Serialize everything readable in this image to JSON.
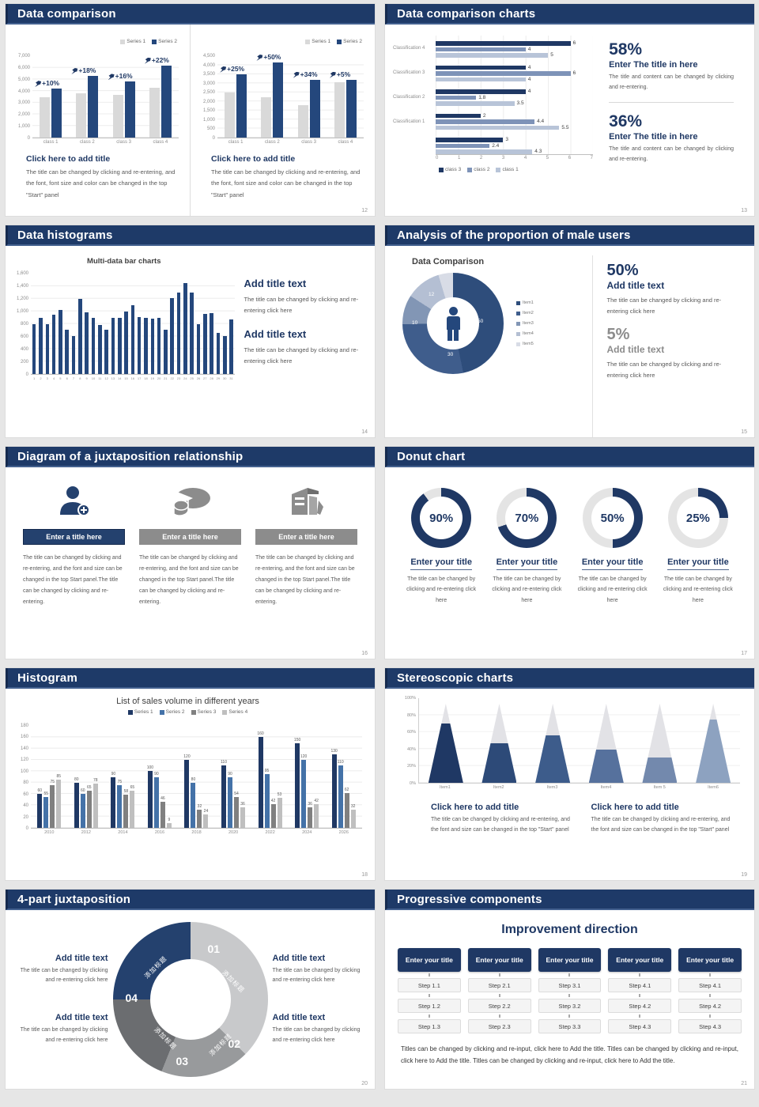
{
  "page": {
    "bg": "#e6e6e6",
    "accent": "#1f3864"
  },
  "slides": {
    "s12": {
      "title": "Data comparison",
      "page_num": "12",
      "legend": [
        {
          "label": "Series 1",
          "color": "#d9d9d9"
        },
        {
          "label": "Series 2",
          "color": "#24477c"
        }
      ],
      "charts": [
        {
          "type": "bar",
          "ymax": 7000,
          "yticks": [
            "7,000",
            "6,000",
            "5,000",
            "4,000",
            "3,000",
            "2,000",
            "1,000",
            "0"
          ],
          "categories": [
            "class 1",
            "class 2",
            "class 3",
            "class 4"
          ],
          "series": [
            {
              "name": "Series 1",
              "color": "#d9d9d9",
              "values": [
                3500,
                3800,
                3700,
                4300
              ]
            },
            {
              "name": "Series 2",
              "color": "#24477c",
              "values": [
                4200,
                5300,
                4800,
                6200
              ]
            }
          ],
          "growth_labels": [
            "+10%",
            "+18%",
            "+16%",
            "+22%"
          ]
        },
        {
          "type": "bar",
          "ymax": 4500,
          "yticks": [
            "4,500",
            "4,000",
            "3,500",
            "3,000",
            "2,500",
            "2,000",
            "1,500",
            "1,000",
            "500",
            "0"
          ],
          "categories": [
            "class 1",
            "class 2",
            "class 3",
            "class 4"
          ],
          "series": [
            {
              "name": "Series 1",
              "color": "#d9d9d9",
              "values": [
                2500,
                2250,
                1800,
                3050
              ]
            },
            {
              "name": "Series 2",
              "color": "#24477c",
              "values": [
                3500,
                4150,
                3200,
                3200
              ]
            }
          ],
          "growth_labels": [
            "+25%",
            "+50%",
            "+34%",
            "+5%"
          ]
        }
      ],
      "blocks": [
        {
          "heading": "Click here to add title",
          "body": "The title can be changed by clicking and re-entering, and the font, font size and color can be changed in the top \"Start\" panel"
        },
        {
          "heading": "Click here to add title",
          "body": "The title can be changed by clicking and re-entering, and the font, font size and color can be changed in the top \"Start\" panel"
        }
      ]
    },
    "s13": {
      "title": "Data comparison charts",
      "page_num": "13",
      "chart": {
        "type": "bar-horizontal",
        "xmax": 7,
        "xticks": [
          "0",
          "1",
          "2",
          "3",
          "4",
          "5",
          "6",
          "7"
        ],
        "colors": [
          "#1f3864",
          "#7e93b8",
          "#b8c4d8"
        ],
        "groups": [
          {
            "label": "Classification 4",
            "values": [
              6,
              4,
              5
            ]
          },
          {
            "label": "Classification 3",
            "values": [
              4,
              6,
              4
            ]
          },
          {
            "label": "Classification 2",
            "values": [
              4,
              1.8,
              3.5
            ]
          },
          {
            "label": "Classification 1",
            "values": [
              2,
              4.4,
              5.5
            ]
          },
          {
            "label": "",
            "values": [
              3,
              2.4,
              4.3
            ]
          }
        ]
      },
      "legend": [
        {
          "label": "class 3",
          "color": "#1f3864"
        },
        {
          "label": "class 2",
          "color": "#7e93b8"
        },
        {
          "label": "class 1",
          "color": "#b8c4d8"
        }
      ],
      "stats": [
        {
          "pct": "58%",
          "heading": "Enter The title in here",
          "body": "The title and content can be changed by clicking and re-entering."
        },
        {
          "pct": "36%",
          "heading": "Enter The title in here",
          "body": "The title and content can be changed by clicking and re-entering."
        }
      ]
    },
    "s14": {
      "title": "Data histograms",
      "page_num": "14",
      "chart": {
        "type": "bar",
        "title": "Multi-data bar charts",
        "ymax": 1600,
        "yticks": [
          "1,600",
          "1,400",
          "1,200",
          "1,000",
          "800",
          "600",
          "400",
          "200",
          "0"
        ],
        "categories": [
          "1",
          "2",
          "3",
          "4",
          "5",
          "6",
          "7",
          "8",
          "9",
          "10",
          "11",
          "12",
          "13",
          "14",
          "15",
          "16",
          "17",
          "18",
          "19",
          "20",
          "21",
          "22",
          "23",
          "24",
          "25",
          "26",
          "27",
          "28",
          "29",
          "30",
          "31"
        ],
        "series": [
          {
            "name": "data",
            "color": "#24477c",
            "values": [
              800,
              900,
              800,
              950,
              1020,
              700,
              600,
              1200,
              980,
              900,
              780,
              700,
              890,
              900,
              1000,
              1100,
              910,
              900,
              880,
              900,
              700,
              1210,
              1300,
              1450,
              1300,
              800,
              960,
              970,
              660,
              600,
              870
            ]
          }
        ]
      },
      "blocks": [
        {
          "heading": "Add title text",
          "body": "The title can be changed by clicking and re-entering click here"
        },
        {
          "heading": "Add title text",
          "body": "The title can be changed by clicking and re-entering click here"
        }
      ]
    },
    "s15": {
      "title": "Analysis of the proportion of male users",
      "page_num": "15",
      "chart": {
        "type": "pie",
        "title": "Data Comparison",
        "values": [
          50,
          30,
          10,
          12,
          5
        ],
        "colors": [
          "#2e4d7b",
          "#3f5d8c",
          "#8296b5",
          "#b4bfd3",
          "#d8dce6"
        ],
        "slice_labels": [
          "50",
          "30",
          "10",
          "12"
        ],
        "legend": [
          "Item1",
          "Item2",
          "Item3",
          "Item4",
          "Item5"
        ]
      },
      "icon": "male-figure-icon",
      "stats": [
        {
          "pct": "50%",
          "heading": "Add title text",
          "body": "The title can be changed by clicking and re-entering click here",
          "muted": false
        },
        {
          "pct": "5%",
          "heading": "Add title text",
          "body": "The title can be changed by clicking and re-entering click here",
          "muted": true
        }
      ]
    },
    "s16": {
      "title": "Diagram of a juxtaposition relationship",
      "page_num": "16",
      "columns": [
        {
          "icon": "person-add-icon",
          "bar": "Enter a title here",
          "body": "The title can be changed by clicking and re-entering, and the font and size can be changed in the top Start panel.The title can be changed by clicking and re-entering."
        },
        {
          "icon": "pie-chart-icon",
          "bar": "Enter a title here",
          "body": "The title can be changed by clicking and re-entering, and the font and size can be changed in the top Start panel.The title can be changed by clicking and re-entering."
        },
        {
          "icon": "building-icon",
          "bar": "Enter a title here",
          "body": "The title can be changed by clicking and re-entering, and the font and size can be changed in the top Start panel.The title can be changed by clicking and re-entering."
        }
      ]
    },
    "s17": {
      "title": "Donut chart",
      "page_num": "17",
      "rings": [
        {
          "pct": 90,
          "pct_label": "90%",
          "heading": "Enter your title",
          "body": "The title can be changed by clicking and re-entering click here"
        },
        {
          "pct": 70,
          "pct_label": "70%",
          "heading": "Enter your title",
          "body": "The title can be changed by clicking and re-entering click here"
        },
        {
          "pct": 50,
          "pct_label": "50%",
          "heading": "Enter your title",
          "body": "The title can be changed by clicking and re-entering click here"
        },
        {
          "pct": 25,
          "pct_label": "25%",
          "heading": "Enter your title",
          "body": "The title can be changed by clicking and re-entering click here"
        }
      ],
      "ring_color": "#1f3864",
      "ring_track": "#e4e4e4"
    },
    "s18": {
      "title": "Histogram",
      "page_num": "18",
      "chart": {
        "type": "bar",
        "title": "List of sales volume in different years",
        "ymax": 180,
        "yticks": [
          "180",
          "160",
          "140",
          "120",
          "100",
          "80",
          "60",
          "40",
          "20",
          "0"
        ],
        "categories": [
          "2010",
          "2012",
          "2014",
          "2016",
          "2018",
          "2020",
          "2022",
          "2024",
          "2026"
        ],
        "series": [
          {
            "name": "Series 1",
            "color": "#1f3864",
            "values": [
              60,
              80,
              90,
              100,
              120,
              110,
              160,
              150,
              130
            ]
          },
          {
            "name": "Series 2",
            "color": "#4472a8",
            "values": [
              55,
              60,
              75,
              90,
              80,
              90,
              95,
              120,
              110
            ]
          },
          {
            "name": "Series 3",
            "color": "#808080",
            "values": [
              75,
              65,
              58,
              46,
              32,
              54,
              42,
              36,
              62
            ]
          },
          {
            "name": "Series 4",
            "color": "#bfbfbf",
            "values": [
              85,
              78,
              65,
              9,
              24,
              36,
              53,
              42,
              32
            ]
          }
        ]
      },
      "legend": [
        {
          "label": "Series 1",
          "color": "#1f3864"
        },
        {
          "label": "Series 2",
          "color": "#4472a8"
        },
        {
          "label": "Series 3",
          "color": "#808080"
        },
        {
          "label": "Series 4",
          "color": "#bfbfbf"
        }
      ]
    },
    "s19": {
      "title": "Stereoscopic charts",
      "page_num": "19",
      "chart": {
        "type": "bar",
        "yticks": [
          "100%",
          "80%",
          "60%",
          "40%",
          "20%",
          "0%"
        ],
        "items": [
          {
            "label": "Item1",
            "fill": 75,
            "color": "#1f3864"
          },
          {
            "label": "Item2",
            "fill": 50,
            "color": "#2d4a78"
          },
          {
            "label": "Item3",
            "fill": 60,
            "color": "#3d5c8b"
          },
          {
            "label": "Item4",
            "fill": 42,
            "color": "#56719d"
          },
          {
            "label": "Item 5",
            "fill": 32,
            "color": "#7389ad"
          },
          {
            "label": "Item6",
            "fill": 80,
            "color": "#8da2c0"
          }
        ],
        "cone_top_color": "#e2e2e6"
      },
      "blocks": [
        {
          "heading": "Click here to add title",
          "body": "The title can be changed by clicking and re-entering, and the font and size can be changed in the top \"Start\" panel"
        },
        {
          "heading": "Click here to add title",
          "body": "The title can be changed by clicking and re-entering, and the font and size can be changed in the top \"Start\" panel"
        }
      ]
    },
    "s20": {
      "title": "4-part juxtaposition",
      "page_num": "20",
      "segments": [
        {
          "num": "01",
          "label_zh": "添加标题",
          "color": "#c8c9cb"
        },
        {
          "num": "02",
          "label_zh": "添加标题",
          "color": "#989a9c"
        },
        {
          "num": "03",
          "label_zh": "添加标题",
          "color": "#6b6d70"
        },
        {
          "num": "04",
          "label_zh": "添加标题",
          "color": "#24416e"
        }
      ],
      "blocks": [
        {
          "heading": "Add title text",
          "body": "The title can be changed by clicking and re-entering click here"
        },
        {
          "heading": "Add title text",
          "body": "The title can be changed by clicking and re-entering click here"
        },
        {
          "heading": "Add title text",
          "body": "The title can be changed by clicking and re-entering click here"
        },
        {
          "heading": "Add title text",
          "body": "The title can be changed by clicking and re-entering click here"
        }
      ]
    },
    "s21": {
      "title": "Progressive components",
      "page_num": "21",
      "heading": "Improvement direction",
      "columns": [
        {
          "title": "Enter your title",
          "steps": [
            "Step 1.1",
            "Step 1.2",
            "Step 1.3"
          ]
        },
        {
          "title": "Enter your title",
          "steps": [
            "Step 2.1",
            "Step 2.2",
            "Step 2.3"
          ]
        },
        {
          "title": "Enter your title",
          "steps": [
            "Step 3.1",
            "Step 3.2",
            "Step 3.3"
          ]
        },
        {
          "title": "Enter your title",
          "steps": [
            "Step 4.1",
            "Step 4.2",
            "Step 4.3"
          ]
        },
        {
          "title": "Enter your title",
          "steps": [
            "Step 4.1",
            "Step 4.2",
            "Step 4.3"
          ]
        }
      ],
      "footer": "Titles can be changed by clicking and re-input, click here to Add the title. Titles can be changed by clicking and re-input, click here to Add the title. Titles can be changed by clicking and re-input, click here to Add the title."
    }
  }
}
